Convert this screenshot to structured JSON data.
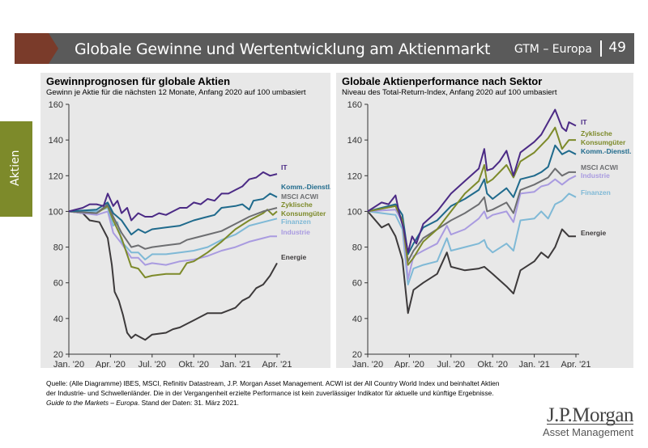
{
  "header": {
    "title": "Globale Gewinne und Wertentwicklung am Aktienmarkt",
    "section": "GTM – Europa",
    "page": "49"
  },
  "side_tab": "Aktien",
  "footer": {
    "source": "Quelle: (Alle Diagramme) IBES, MSCI, Refinitiv Datastream, J.P. Morgan Asset Management. ACWI ist der All Country World Index und beinhaltet Aktien der Industrie- und Schwellenländer. Die in der Vergangenheit erzielte Performance ist kein zuverlässiger Indikator für aktuelle und künftige Ergebnisse. ",
    "guide": "Guide to the Markets – Europa",
    "date": ". Stand der Daten: 31. März 2021."
  },
  "logo": {
    "name": "J.P.Morgan",
    "sub": "Asset Management"
  },
  "chart_data": [
    {
      "type": "line",
      "title": "Gewinnprognosen für globale Aktien",
      "subtitle": "Gewinn je Aktie für die nächsten 12 Monate, Anfang 2020 auf 100 umbasiert",
      "xlabel": "",
      "ylabel": "",
      "ylim": [
        20,
        160
      ],
      "yticks": [
        20,
        40,
        60,
        80,
        100,
        120,
        140,
        160
      ],
      "xlim": [
        0,
        15
      ],
      "x_unit": "months since Jan 2020",
      "xticks": [
        {
          "v": 0,
          "label": "Jan. '20"
        },
        {
          "v": 3,
          "label": "Apr. '20"
        },
        {
          "v": 6,
          "label": "Jul. '20"
        },
        {
          "v": 9,
          "label": "Okt. '20"
        },
        {
          "v": 12,
          "label": "Jan. '21"
        },
        {
          "v": 15,
          "label": "Apr. '21"
        }
      ],
      "grid": false,
      "legend": "inline-right",
      "series": [
        {
          "name": "IT",
          "label": [
            "IT"
          ],
          "color": "#4b2a85",
          "x": [
            0,
            1,
            1.5,
            2,
            2.5,
            2.8,
            3.2,
            3.5,
            3.8,
            4.2,
            4.5,
            5,
            5.5,
            6,
            6.5,
            7,
            7.5,
            8,
            8.5,
            9,
            9.5,
            10,
            10.5,
            11,
            11.5,
            12,
            12.5,
            13,
            13.5,
            14,
            14.5,
            15
          ],
          "y": [
            100,
            102,
            104,
            104,
            103,
            110,
            103,
            106,
            99,
            102,
            95,
            99,
            97,
            97,
            99,
            98,
            100,
            102,
            102,
            105,
            104,
            107,
            106,
            110,
            110,
            112,
            114,
            118,
            119,
            122,
            120,
            121
          ]
        },
        {
          "name": "Komm.-Dienstl.",
          "label": [
            "Komm.-Dienstl."
          ],
          "color": "#1f6a8c",
          "x": [
            0,
            2,
            2.8,
            3.2,
            3.8,
            4.5,
            5,
            5.5,
            6,
            7,
            8,
            9,
            10,
            10.5,
            11,
            12,
            12.5,
            13,
            13.3,
            14,
            14.5,
            15
          ],
          "y": [
            100,
            101,
            105,
            99,
            95,
            87,
            90,
            88,
            90,
            91,
            92,
            95,
            97,
            98,
            102,
            103,
            104,
            101,
            106,
            107,
            110,
            108
          ]
        },
        {
          "name": "MSCI ACWI",
          "label": [
            "MSCI ACWI"
          ],
          "color": "#6d6e71",
          "x": [
            0,
            2,
            2.8,
            3.2,
            3.8,
            4.5,
            5,
            5.5,
            6,
            7,
            8,
            8.5,
            9,
            10,
            11,
            12,
            13,
            14,
            14.5,
            15
          ],
          "y": [
            100,
            99,
            104,
            97,
            88,
            80,
            81,
            79,
            80,
            81,
            82,
            84,
            85,
            87,
            89,
            93,
            97,
            100,
            101,
            102
          ]
        },
        {
          "name": "Zyklische Konsumgüter",
          "label": [
            "Zyklische",
            "Konsumgüter"
          ],
          "color": "#7d8a2a",
          "x": [
            0,
            2,
            2.8,
            3.2,
            3.8,
            4.5,
            5,
            5.5,
            6,
            7,
            8,
            8.5,
            9,
            10,
            11,
            12,
            13,
            14,
            14.3,
            14.7,
            15
          ],
          "y": [
            100,
            99,
            103,
            95,
            85,
            69,
            68,
            63,
            64,
            65,
            65,
            71,
            72,
            77,
            83,
            90,
            95,
            99,
            101,
            98,
            100
          ]
        },
        {
          "name": "Finanzen",
          "label": [
            "Finanzen"
          ],
          "color": "#7fb9d6",
          "x": [
            0,
            2,
            2.8,
            3.2,
            3.5,
            3.8,
            4.5,
            5,
            5.5,
            6,
            7,
            8,
            9,
            10,
            11,
            12,
            13,
            14,
            15
          ],
          "y": [
            100,
            100,
            102,
            92,
            94,
            83,
            77,
            77,
            73,
            76,
            76,
            77,
            78,
            80,
            84,
            87,
            92,
            94,
            96
          ]
        },
        {
          "name": "Industrie",
          "label": [
            "Industrie"
          ],
          "color": "#a99be0",
          "x": [
            0,
            2,
            2.8,
            3.2,
            3.8,
            4.5,
            5,
            5.5,
            6,
            7,
            8,
            9,
            10,
            11,
            12,
            13,
            14,
            14.5,
            15
          ],
          "y": [
            100,
            98,
            100,
            88,
            82,
            74,
            74,
            70,
            71,
            70,
            72,
            73,
            75,
            78,
            80,
            83,
            85,
            86,
            86
          ]
        },
        {
          "name": "Energie",
          "label": [
            "Energie"
          ],
          "color": "#3d3a3b",
          "x": [
            0,
            1,
            1.5,
            2.2,
            2.8,
            3.1,
            3.3,
            3.6,
            3.9,
            4.2,
            4.5,
            4.8,
            5.5,
            6,
            7,
            7.5,
            8,
            8.5,
            9,
            9.5,
            10,
            11,
            12,
            12.5,
            13,
            13.5,
            14,
            14.5,
            15
          ],
          "y": [
            100,
            99,
            95,
            94,
            85,
            70,
            55,
            50,
            42,
            32,
            29,
            31,
            28,
            31,
            32,
            34,
            35,
            37,
            39,
            41,
            43,
            43,
            46,
            50,
            52,
            57,
            59,
            64,
            71
          ]
        }
      ]
    },
    {
      "type": "line",
      "title": "Globale Aktienperformance nach Sektor",
      "subtitle": "Niveau des Total-Return-Index, Anfang 2020 auf 100 umbasiert",
      "xlabel": "",
      "ylabel": "",
      "ylim": [
        20,
        160
      ],
      "yticks": [
        20,
        40,
        60,
        80,
        100,
        120,
        140,
        160
      ],
      "xlim": [
        0,
        15
      ],
      "x_unit": "months since Jan 2020",
      "xticks": [
        {
          "v": 0,
          "label": "Jan. '20"
        },
        {
          "v": 3,
          "label": "Apr. '20"
        },
        {
          "v": 6,
          "label": "Jul. '20"
        },
        {
          "v": 9,
          "label": "Okt. '20"
        },
        {
          "v": 12,
          "label": "Jan. '21"
        },
        {
          "v": 15,
          "label": "Apr. '21"
        }
      ],
      "grid": false,
      "legend": "inline-right",
      "series": [
        {
          "name": "IT",
          "label": [
            "IT"
          ],
          "color": "#4b2a85",
          "x": [
            0,
            1,
            1.5,
            2,
            2.3,
            2.6,
            2.9,
            3.2,
            3.5,
            4,
            5,
            6,
            7,
            8,
            8.4,
            8.6,
            9,
            9.5,
            10,
            10.5,
            11,
            12,
            12.5,
            13,
            13.5,
            14,
            14.3,
            14.5,
            15
          ],
          "y": [
            100,
            105,
            104,
            109,
            98,
            90,
            77,
            86,
            82,
            93,
            100,
            110,
            117,
            124,
            135,
            123,
            124,
            128,
            134,
            120,
            133,
            139,
            143,
            150,
            157,
            147,
            145,
            150,
            148
          ]
        },
        {
          "name": "Zyklische Konsumgüter",
          "label": [
            "Zyklische",
            "Konsumgüter"
          ],
          "color": "#7d8a2a",
          "x": [
            0,
            2,
            2.5,
            2.9,
            3.3,
            4,
            5,
            6,
            7,
            8,
            8.4,
            8.6,
            9,
            10,
            10.5,
            11,
            12,
            13,
            13.5,
            14,
            14.5,
            15
          ],
          "y": [
            100,
            103,
            95,
            70,
            74,
            83,
            90,
            100,
            110,
            117,
            126,
            116,
            118,
            126,
            119,
            128,
            133,
            141,
            147,
            135,
            140,
            140
          ]
        },
        {
          "name": "Komm.-Dienstl.",
          "label": [
            "Komm.-Dienstl."
          ],
          "color": "#1f6a8c",
          "x": [
            0,
            2,
            2.5,
            2.9,
            3.3,
            4,
            5,
            6,
            7,
            8,
            8.4,
            8.6,
            9,
            10,
            10.5,
            11,
            12,
            12.5,
            13,
            13.5,
            14,
            14.5,
            15
          ],
          "y": [
            100,
            104,
            98,
            76,
            82,
            91,
            95,
            103,
            107,
            112,
            118,
            110,
            107,
            113,
            108,
            118,
            120,
            122,
            125,
            137,
            132,
            134,
            132
          ]
        },
        {
          "name": "MSCI ACWI",
          "label": [
            "MSCI ACWI"
          ],
          "color": "#6d6e71",
          "x": [
            0,
            2,
            2.5,
            2.9,
            3.3,
            4,
            5,
            6,
            7,
            8,
            8.4,
            8.6,
            9,
            10,
            10.5,
            11,
            12,
            13,
            13.5,
            14,
            14.5,
            15
          ],
          "y": [
            100,
            103,
            95,
            72,
            78,
            85,
            90,
            95,
            99,
            104,
            108,
            100,
            101,
            105,
            99,
            112,
            115,
            119,
            124,
            120,
            122,
            122
          ]
        },
        {
          "name": "Industrie",
          "label": [
            "Industrie"
          ],
          "color": "#a99be0",
          "x": [
            0,
            2,
            2.5,
            2.9,
            3.3,
            4,
            5,
            5.7,
            6,
            7,
            8,
            8.4,
            8.6,
            9,
            10,
            10.5,
            11,
            12,
            12.5,
            13,
            13.5,
            14,
            14.5,
            15
          ],
          "y": [
            100,
            101,
            94,
            62,
            75,
            78,
            82,
            92,
            87,
            90,
            96,
            100,
            96,
            98,
            100,
            94,
            110,
            111,
            114,
            115,
            118,
            115,
            118,
            120
          ]
        },
        {
          "name": "Finanzen",
          "label": [
            "Finanzen"
          ],
          "color": "#7fb9d6",
          "x": [
            0,
            2,
            2.5,
            2.9,
            3.3,
            4,
            5,
            5.7,
            6,
            7,
            8,
            8.4,
            8.6,
            9,
            10,
            10.5,
            11,
            12,
            12.5,
            13,
            13.5,
            14,
            14.5,
            15
          ],
          "y": [
            100,
            98,
            90,
            59,
            68,
            70,
            72,
            85,
            78,
            80,
            82,
            84,
            80,
            77,
            82,
            78,
            95,
            96,
            100,
            96,
            104,
            106,
            110,
            108
          ]
        },
        {
          "name": "Energie",
          "label": [
            "Energie"
          ],
          "color": "#3d3a3b",
          "x": [
            0,
            1,
            1.5,
            2,
            2.5,
            2.9,
            3.3,
            4,
            5,
            5.7,
            6,
            7,
            8,
            8.4,
            9,
            10,
            10.5,
            11,
            12,
            12.5,
            13,
            13.5,
            14,
            14.5,
            15
          ],
          "y": [
            100,
            91,
            93,
            86,
            73,
            43,
            56,
            60,
            65,
            77,
            69,
            67,
            68,
            69,
            65,
            58,
            54,
            67,
            72,
            77,
            74,
            80,
            90,
            86,
            86
          ]
        }
      ]
    }
  ]
}
